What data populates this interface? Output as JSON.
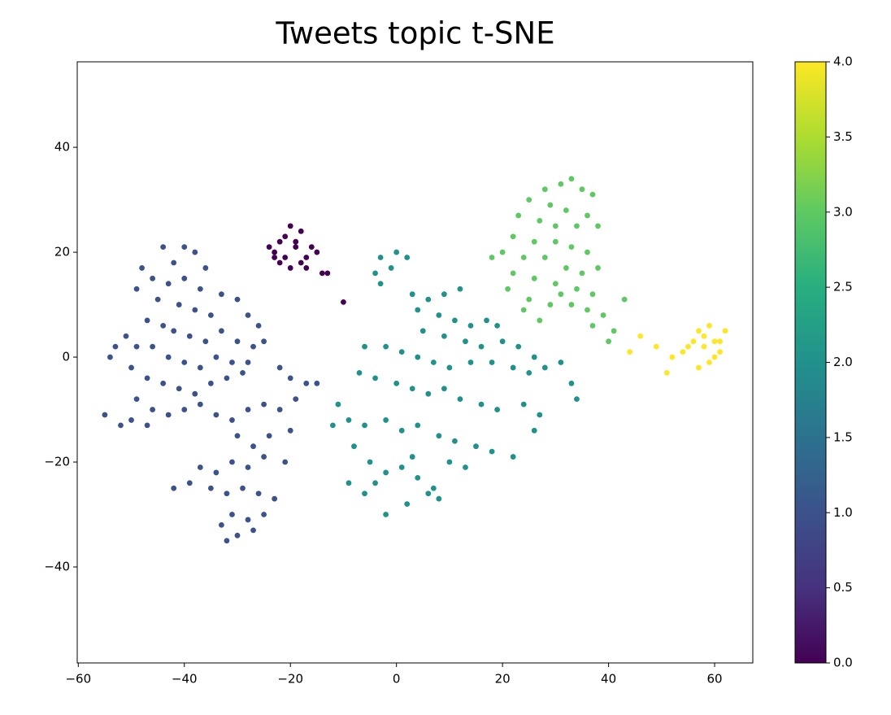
{
  "chart_data": {
    "type": "scatter",
    "title": "Tweets topic t-SNE",
    "xlim": [
      -60.2,
      67.2
    ],
    "ylim": [
      -58.3,
      56.3
    ],
    "xticks": [
      {
        "value": -60,
        "label": "−60"
      },
      {
        "value": -40,
        "label": "−40"
      },
      {
        "value": -20,
        "label": "−20"
      },
      0,
      20,
      40,
      60
    ],
    "yticks": [
      {
        "value": -40,
        "label": "−40"
      },
      {
        "value": -20,
        "label": "−20"
      },
      0,
      20,
      40
    ],
    "clim": [
      0,
      4
    ],
    "cticks": [
      {
        "value": 0,
        "label": "0.0"
      },
      0.5,
      {
        "value": 1,
        "label": "1.0"
      },
      1.5,
      {
        "value": 2,
        "label": "2.0"
      },
      2.5,
      {
        "value": 3,
        "label": "3.0"
      },
      3.5,
      {
        "value": 4,
        "label": "4.0"
      }
    ],
    "colormap": "viridis",
    "series": [
      {
        "color_value": 0,
        "x": [
          -24,
          -23,
          -22,
          -21,
          -21,
          -20,
          -19,
          -18,
          -17,
          -16,
          -15,
          -14,
          -13,
          -22,
          -20,
          -18,
          -17,
          -10,
          -23,
          -19
        ],
        "values": [
          21,
          20,
          22,
          19,
          23,
          25,
          21,
          24,
          19,
          21,
          20,
          16,
          16,
          18,
          17,
          18,
          17,
          10.5,
          19,
          22
        ]
      },
      {
        "color_value": 1,
        "x": [
          -44,
          -40,
          -38,
          -42,
          -36,
          -48,
          -46,
          -43,
          -40,
          -37,
          -33,
          -30,
          -45,
          -49,
          -41,
          -38,
          -35,
          -28,
          -26,
          -47,
          -44,
          -42,
          -39,
          -36,
          -33,
          -30,
          -27,
          -25,
          -51,
          -49,
          -53,
          -46,
          -43,
          -40,
          -37,
          -34,
          -31,
          -28,
          -54,
          -50,
          -47,
          -44,
          -41,
          -38,
          -35,
          -32,
          -29,
          -22,
          -20,
          -17,
          -15,
          -19,
          -22,
          -25,
          -28,
          -31,
          -34,
          -37,
          -40,
          -43,
          -46,
          -49,
          -52,
          -55,
          -50,
          -47,
          -30,
          -27,
          -24,
          -20,
          -21,
          -25,
          -28,
          -31,
          -34,
          -37,
          -39,
          -42,
          -35,
          -32,
          -29,
          -26,
          -23,
          -25,
          -28,
          -31,
          -33,
          -30,
          -32,
          -27
        ],
        "values": [
          21,
          21,
          20,
          18,
          17,
          17,
          15,
          14,
          15,
          13,
          12,
          11,
          11,
          13,
          10,
          9,
          8,
          8,
          6,
          7,
          6,
          5,
          4,
          3,
          5,
          3,
          2,
          3,
          4,
          2,
          2,
          2,
          0,
          -1,
          -2,
          0,
          -1,
          -1,
          0,
          -2,
          -4,
          -5,
          -6,
          -7,
          -5,
          -4,
          -3,
          -2,
          -4,
          -5,
          -5,
          -8,
          -10,
          -9,
          -10,
          -12,
          -11,
          -9,
          -10,
          -11,
          -10,
          -8,
          -13,
          -11,
          -12,
          -13,
          -15,
          -17,
          -15,
          -14,
          -20,
          -19,
          -21,
          -20,
          -22,
          -21,
          -24,
          -25,
          -25,
          -26,
          -25,
          -26,
          -27,
          -30,
          -31,
          -30,
          -32,
          -34,
          -35,
          -33
        ]
      },
      {
        "color_value": 2,
        "x": [
          -3,
          0,
          2,
          -1,
          -4,
          -3,
          3,
          6,
          9,
          12,
          4,
          8,
          11,
          14,
          17,
          19,
          5,
          9,
          13,
          16,
          20,
          23,
          26,
          -6,
          -2,
          1,
          4,
          7,
          10,
          14,
          18,
          22,
          25,
          28,
          31,
          -7,
          -4,
          0,
          3,
          6,
          9,
          12,
          16,
          19,
          24,
          27,
          -11,
          -9,
          -6,
          -2,
          1,
          4,
          8,
          11,
          15,
          18,
          22,
          26,
          33,
          34,
          -12,
          -8,
          -5,
          -2,
          1,
          4,
          7,
          10,
          13,
          -9,
          -6,
          -2,
          2,
          6,
          8,
          -4,
          3
        ],
        "values": [
          19,
          20,
          19,
          17,
          16,
          14,
          12,
          11,
          12,
          13,
          9,
          8,
          7,
          6,
          7,
          6,
          5,
          4,
          3,
          2,
          3,
          2,
          0,
          2,
          2,
          1,
          0,
          -1,
          -2,
          -1,
          -1,
          -2,
          -3,
          -2,
          -1,
          -3,
          -4,
          -5,
          -6,
          -7,
          -6,
          -8,
          -9,
          -10,
          -9,
          -11,
          -9,
          -12,
          -13,
          -12,
          -14,
          -13,
          -15,
          -16,
          -17,
          -18,
          -19,
          -14,
          -5,
          -8,
          -13,
          -17,
          -20,
          -22,
          -21,
          -23,
          -25,
          -20,
          -21,
          -24,
          -26,
          -30,
          -28,
          -26,
          -27,
          -24,
          -19
        ]
      },
      {
        "color_value": 3,
        "x": [
          28,
          31,
          33,
          35,
          37,
          25,
          29,
          32,
          36,
          23,
          27,
          30,
          34,
          38,
          22,
          26,
          30,
          33,
          36,
          20,
          24,
          28,
          32,
          35,
          38,
          18,
          22,
          26,
          30,
          34,
          37,
          21,
          25,
          29,
          33,
          36,
          39,
          43,
          41,
          37,
          27,
          40,
          24,
          31
        ],
        "values": [
          32,
          33,
          34,
          32,
          31,
          30,
          29,
          28,
          27,
          27,
          26,
          25,
          25,
          25,
          23,
          22,
          22,
          21,
          20,
          20,
          19,
          19,
          17,
          16,
          17,
          19,
          16,
          15,
          14,
          13,
          12,
          13,
          11,
          10,
          10,
          9,
          8,
          11,
          5,
          6,
          7,
          3,
          9,
          12
        ]
      },
      {
        "color_value": 4,
        "x": [
          44,
          46,
          49,
          51,
          52,
          54,
          56,
          57,
          58,
          59,
          60,
          61,
          62,
          59,
          57,
          60,
          58,
          61,
          55
        ],
        "values": [
          1,
          4,
          2,
          -3,
          0,
          1,
          3,
          5,
          2,
          6,
          3,
          1,
          5,
          -1,
          -2,
          0,
          4,
          3,
          2
        ]
      }
    ]
  }
}
